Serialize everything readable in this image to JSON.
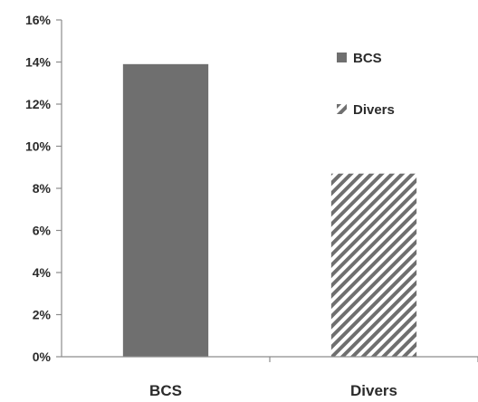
{
  "chart_data": {
    "type": "bar",
    "categories": [
      "BCS",
      "Divers"
    ],
    "values": [
      0.139,
      0.087
    ],
    "ylim": [
      0,
      0.16
    ],
    "yticks": [
      0,
      0.02,
      0.04,
      0.06,
      0.08,
      0.1,
      0.12,
      0.14,
      0.16
    ],
    "ytick_labels": [
      "0%",
      "2%",
      "4%",
      "6%",
      "8%",
      "10%",
      "12%",
      "14%",
      "16%"
    ],
    "grid": false,
    "legend_position": "right",
    "legend": [
      {
        "label": "BCS",
        "style": "solid"
      },
      {
        "label": "Divers",
        "style": "hatched"
      }
    ],
    "colors": {
      "solid": "#6f6f6f",
      "hatch": "#6f6f6f",
      "axis": "#8c8c8c"
    }
  }
}
